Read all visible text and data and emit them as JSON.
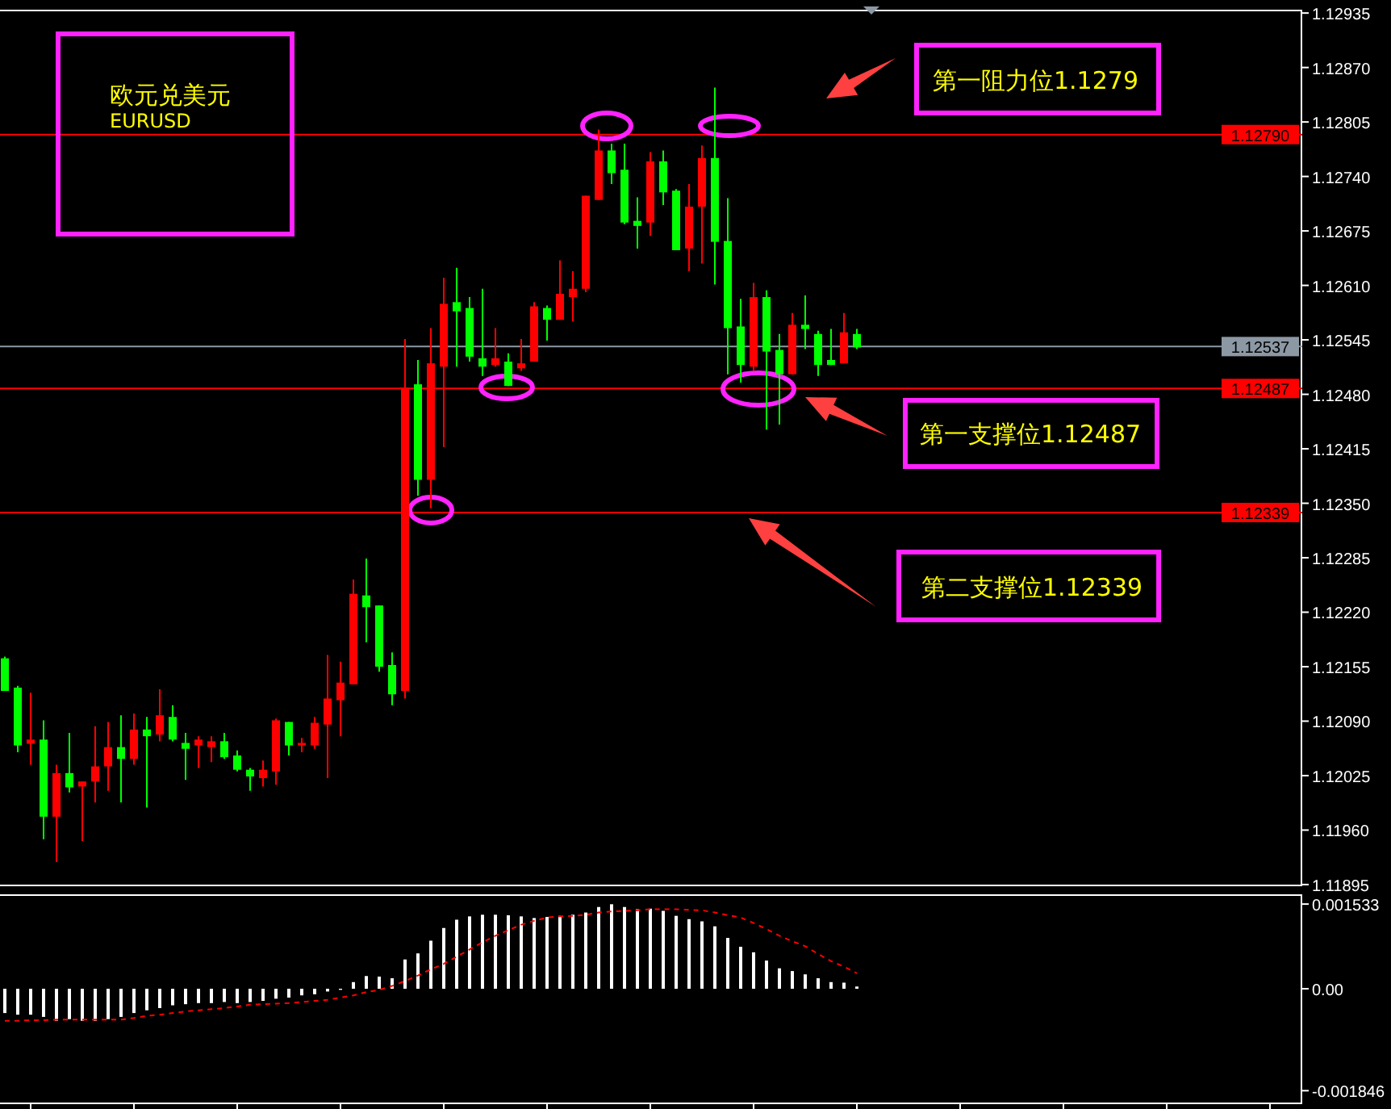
{
  "chart_data": [
    {
      "type": "candlestick",
      "tick_labels": "y",
      "grid": false,
      "categories": [
        null,
        null,
        null,
        null,
        null,
        null,
        null,
        null,
        null,
        null,
        null,
        null,
        null,
        null,
        null,
        null,
        null,
        null,
        null,
        null,
        null,
        null,
        null,
        null,
        null,
        null,
        null,
        null,
        null,
        null,
        null,
        null,
        null,
        null,
        null,
        null,
        null,
        null,
        null,
        null,
        null,
        null,
        null,
        null,
        null,
        null,
        null,
        null,
        null,
        null,
        null,
        null,
        null,
        null,
        null,
        null,
        null,
        null,
        null,
        null,
        null,
        null,
        null,
        null,
        null,
        null,
        null,
        null,
        null,
        null,
        null,
        null,
        null,
        null,
        null,
        null,
        null,
        null,
        null,
        null,
        null,
        null,
        null,
        null,
        null,
        null,
        null,
        null,
        null,
        null,
        null,
        null,
        null,
        null,
        null,
        null,
        null,
        null,
        null,
        null,
        null
      ],
      "ohlc": [
        [
          1.12165,
          1.12167,
          1.12126,
          1.12126
        ],
        [
          1.1213,
          1.12132,
          1.12053,
          1.12061
        ],
        [
          1.12063,
          1.12124,
          1.12038,
          1.12068
        ],
        [
          1.12068,
          1.12091,
          1.11949,
          1.11976
        ],
        [
          1.11976,
          1.12038,
          1.11922,
          1.12028
        ],
        [
          1.12028,
          1.12076,
          1.12005,
          1.12011
        ],
        [
          1.12012,
          1.12018,
          1.11947,
          1.12018
        ],
        [
          1.12018,
          1.12084,
          1.11993,
          1.12036
        ],
        [
          1.12036,
          1.12089,
          1.12007,
          1.12059
        ],
        [
          1.12059,
          1.12097,
          1.11993,
          1.12045
        ],
        [
          1.12045,
          1.12099,
          1.12038,
          1.1208
        ],
        [
          1.1208,
          1.12095,
          1.11987,
          1.12072
        ],
        [
          1.12074,
          1.12128,
          1.12066,
          1.12097
        ],
        [
          1.12095,
          1.12109,
          1.12066,
          1.12068
        ],
        [
          1.12064,
          1.12076,
          1.1202,
          1.12057
        ],
        [
          1.12061,
          1.12072,
          1.12034,
          1.12068
        ],
        [
          1.12059,
          1.12072,
          1.12041,
          1.12066
        ],
        [
          1.12066,
          1.12076,
          1.12045,
          1.12047
        ],
        [
          1.12049,
          1.12055,
          1.1203,
          1.12032
        ],
        [
          1.12032,
          1.12034,
          1.12007,
          1.12024
        ],
        [
          1.12022,
          1.12043,
          1.12012,
          1.12032
        ],
        [
          1.1203,
          1.12093,
          1.12014,
          1.12091
        ],
        [
          1.12089,
          1.12089,
          1.12049,
          1.12061
        ],
        [
          1.12061,
          1.1207,
          1.12053,
          1.12064
        ],
        [
          1.12061,
          1.12095,
          1.12057,
          1.12088
        ],
        [
          1.12086,
          1.12169,
          1.12022,
          1.12117
        ],
        [
          1.12115,
          1.12161,
          1.12072,
          1.12136
        ],
        [
          1.12134,
          1.12259,
          1.12134,
          1.12242
        ],
        [
          1.1224,
          1.12284,
          1.12184,
          1.12226
        ],
        [
          1.12228,
          1.12228,
          1.12149,
          1.12155
        ],
        [
          1.12157,
          1.12172,
          1.12109,
          1.12122
        ],
        [
          1.12126,
          1.12546,
          1.12117,
          1.12488
        ],
        [
          1.12492,
          1.12521,
          1.12359,
          1.12378
        ],
        [
          1.12378,
          1.12559,
          1.12344,
          1.12517
        ],
        [
          1.12513,
          1.12619,
          1.12417,
          1.12588
        ],
        [
          1.1259,
          1.12631,
          1.12513,
          1.12579
        ],
        [
          1.12583,
          1.12596,
          1.12519,
          1.12525
        ],
        [
          1.12523,
          1.12606,
          1.12502,
          1.12513
        ],
        [
          1.12515,
          1.12559,
          1.12513,
          1.12523
        ],
        [
          1.12519,
          1.12529,
          1.1249,
          1.1249
        ],
        [
          1.12511,
          1.12546,
          1.12508,
          1.12517
        ],
        [
          1.12519,
          1.1259,
          1.12519,
          1.12585
        ],
        [
          1.12583,
          1.12586,
          1.12544,
          1.12569
        ],
        [
          1.12569,
          1.1264,
          1.12569,
          1.126
        ],
        [
          1.12596,
          1.12627,
          1.12567,
          1.12606
        ],
        [
          1.12606,
          1.12717,
          1.12602,
          1.12717
        ],
        [
          1.12712,
          1.12796,
          1.12712,
          1.12771
        ],
        [
          1.12771,
          1.12779,
          1.12731,
          1.12744
        ],
        [
          1.12748,
          1.12779,
          1.12683,
          1.12685
        ],
        [
          1.12687,
          1.12715,
          1.12654,
          1.12681
        ],
        [
          1.12685,
          1.12769,
          1.12669,
          1.12758
        ],
        [
          1.12758,
          1.12771,
          1.12706,
          1.12721
        ],
        [
          1.12723,
          1.12725,
          1.12652,
          1.12652
        ],
        [
          1.12654,
          1.12731,
          1.12627,
          1.12704
        ],
        [
          1.12704,
          1.12777,
          1.12636,
          1.12762
        ],
        [
          1.12762,
          1.12846,
          1.12611,
          1.12662
        ],
        [
          1.12663,
          1.12714,
          1.12504,
          1.12559
        ],
        [
          1.12561,
          1.12594,
          1.12494,
          1.12515
        ],
        [
          1.12513,
          1.12613,
          1.12508,
          1.12596
        ],
        [
          1.12596,
          1.12604,
          1.12438,
          1.12531
        ],
        [
          1.12533,
          1.12552,
          1.12444,
          1.12504
        ],
        [
          1.12504,
          1.12577,
          1.12504,
          1.12563
        ],
        [
          1.12563,
          1.12598,
          1.12534,
          1.12558
        ],
        [
          1.12552,
          1.12556,
          1.12502,
          1.12515
        ],
        [
          1.12521,
          1.12558,
          1.12515,
          1.12515
        ],
        [
          1.12517,
          1.12577,
          1.12517,
          1.12554
        ],
        [
          1.12552,
          1.12558,
          1.12534,
          1.12536
        ],
        null,
        null,
        null,
        null,
        null,
        null,
        null,
        null,
        null,
        null,
        null,
        null,
        null,
        null,
        null,
        null,
        null,
        null,
        null,
        null,
        null,
        null,
        null,
        null,
        null,
        null,
        null,
        null,
        null,
        null,
        null,
        null,
        null,
        null
      ],
      "colors": [
        "#00ff00",
        "#00ff00",
        "#ff0000",
        "#00ff00",
        "#ff0000",
        "#00ff00",
        "#ff0000",
        "#ff0000",
        "#ff0000",
        "#00ff00",
        "#ff0000",
        "#00ff00",
        "#ff0000",
        "#00ff00",
        "#00ff00",
        "#ff0000",
        "#ff0000",
        "#00ff00",
        "#00ff00",
        "#00ff00",
        "#ff0000",
        "#ff0000",
        "#00ff00",
        "#ff0000",
        "#ff0000",
        "#ff0000",
        "#ff0000",
        "#ff0000",
        "#00ff00",
        "#00ff00",
        "#00ff00",
        "#ff0000",
        "#00ff00",
        "#ff0000",
        "#ff0000",
        "#00ff00",
        "#00ff00",
        "#00ff00",
        "#ff0000",
        "#00ff00",
        "#ff0000",
        "#ff0000",
        "#00ff00",
        "#ff0000",
        "#ff0000",
        "#ff0000",
        "#ff0000",
        "#00ff00",
        "#00ff00",
        "#00ff00",
        "#ff0000",
        "#00ff00",
        "#00ff00",
        "#ff0000",
        "#ff0000",
        "#00ff00",
        "#00ff00",
        "#00ff00",
        "#ff0000",
        "#00ff00",
        "#00ff00",
        "#ff0000",
        "#00ff00",
        "#00ff00",
        "#00ff00",
        "#ff0000",
        "#00ff00",
        null,
        null,
        null,
        null,
        null,
        null,
        null,
        null,
        null,
        null,
        null,
        null,
        null,
        null,
        null,
        null,
        null,
        null,
        null,
        null,
        null,
        null,
        null,
        null,
        null,
        null,
        null,
        null,
        null,
        null,
        null,
        null,
        null,
        null
      ],
      "ylim": [
        1.11893,
        1.12939
      ],
      "yticks": [
        {
          "value": 1.12935,
          "label": "1.12935"
        },
        {
          "value": 1.1287,
          "label": "1.12870"
        },
        {
          "value": 1.12805,
          "label": "1.12805"
        },
        {
          "value": 1.1274,
          "label": "1.12740"
        },
        {
          "value": 1.12675,
          "label": "1.12675"
        },
        {
          "value": 1.1261,
          "label": "1.12610"
        },
        {
          "value": 1.12545,
          "label": "1.12545"
        },
        {
          "value": 1.1248,
          "label": "1.12480"
        },
        {
          "value": 1.12415,
          "label": "1.12415"
        },
        {
          "value": 1.1235,
          "label": "1.12350"
        },
        {
          "value": 1.12285,
          "label": "1.12285"
        },
        {
          "value": 1.1222,
          "label": "1.12220"
        },
        {
          "value": 1.12155,
          "label": "1.12155"
        },
        {
          "value": 1.1209,
          "label": "1.12090"
        },
        {
          "value": 1.12025,
          "label": "1.12025"
        },
        {
          "value": 1.1196,
          "label": "1.11960"
        },
        {
          "value": 1.11895,
          "label": "1.11895"
        }
      ],
      "ref_lines": [
        {
          "axis": "y",
          "value": 1.1279,
          "label": "1.12790",
          "color": "#ff0000"
        },
        {
          "axis": "y",
          "value": 1.12537,
          "label": "1.12537",
          "color": "#8c98a4"
        },
        {
          "axis": "y",
          "value": 1.12487,
          "label": "1.12487",
          "color": "#ff0000"
        },
        {
          "axis": "y",
          "value": 1.12339,
          "label": "1.12339",
          "color": "#ff0000"
        }
      ],
      "annotations": [
        "欧元兑美元",
        "EURUSD",
        "第一阻力位1.1279",
        "第一支撑位1.12487",
        "第二支撑位1.12339"
      ]
    },
    {
      "type": "bar",
      "tick_labels": "y",
      "grid": false,
      "categories": [
        null,
        null,
        null,
        null,
        null,
        null,
        null,
        null,
        null,
        null,
        null,
        null,
        null,
        null,
        null,
        null,
        null,
        null,
        null,
        null,
        null,
        null,
        null,
        null,
        null,
        null,
        null,
        null,
        null,
        null,
        null,
        null,
        null,
        null,
        null,
        null,
        null,
        null,
        null,
        null,
        null,
        null,
        null,
        null,
        null,
        null,
        null,
        null,
        null,
        null,
        null,
        null,
        null,
        null,
        null,
        null,
        null,
        null,
        null,
        null,
        null,
        null,
        null,
        null,
        null,
        null,
        null,
        null,
        null,
        null,
        null,
        null,
        null,
        null,
        null,
        null,
        null,
        null,
        null,
        null,
        null,
        null,
        null,
        null,
        null,
        null,
        null,
        null,
        null,
        null,
        null,
        null,
        null,
        null,
        null,
        null,
        null,
        null,
        null,
        null,
        null
      ],
      "series": [
        {
          "type": "bar",
          "color": "#ffffff",
          "values": [
            -0.00044,
            -0.00047,
            -0.00047,
            -0.00051,
            -0.00058,
            -0.00055,
            -0.00058,
            -0.00058,
            -0.00055,
            -0.00051,
            -0.00044,
            -0.00039,
            -0.00035,
            -0.0003,
            -0.00028,
            -0.00026,
            -0.00026,
            -0.00024,
            -0.00026,
            -0.00024,
            -0.00022,
            -0.00018,
            -0.00016,
            -0.00012,
            -0.0001,
            -5e-05,
            -2e-05,
            0.00012,
            0.00023,
            0.00022,
            0.00019,
            0.00053,
            0.00064,
            0.00087,
            0.0011,
            0.00125,
            0.00131,
            0.00134,
            0.00134,
            0.00133,
            0.00131,
            0.00128,
            0.0013,
            0.00132,
            0.00134,
            0.00138,
            0.00148,
            0.00153,
            0.00148,
            0.00144,
            0.00145,
            0.00141,
            0.00132,
            0.00126,
            0.00122,
            0.00113,
            0.00092,
            0.00076,
            0.00066,
            0.00051,
            0.00037,
            0.00032,
            0.00026,
            0.00019,
            0.00012,
            0.00011,
            4e-05,
            null,
            null,
            null,
            null,
            null,
            null,
            null,
            null,
            null,
            null,
            null,
            null,
            null,
            null,
            null,
            null,
            null,
            null,
            null,
            null,
            null,
            null,
            null,
            null,
            null,
            null,
            null,
            null,
            null,
            null,
            null,
            null,
            null,
            null
          ]
        },
        {
          "type": "line",
          "color": "#ff0000",
          "line_style": "dashed",
          "values": [
            -0.00058,
            -0.00058,
            -0.00057,
            -0.00057,
            -0.00056,
            -0.00056,
            -0.00056,
            -0.00056,
            -0.00056,
            -0.00056,
            -0.00053,
            -0.00049,
            -0.00047,
            -0.00044,
            -0.00041,
            -0.00039,
            -0.00037,
            -0.00035,
            -0.00032,
            -0.00029,
            -0.00028,
            -0.00027,
            -0.00026,
            -0.00024,
            -0.00022,
            -0.0002,
            -0.00016,
            -0.00012,
            -6e-05,
            -2e-05,
            5e-05,
            0.00014,
            0.00024,
            0.00035,
            0.00045,
            0.00058,
            0.00071,
            0.00084,
            0.00096,
            0.00106,
            0.00116,
            0.00123,
            0.00129,
            0.00131,
            0.00132,
            0.00134,
            0.00138,
            0.0014,
            0.00141,
            0.00142,
            0.00144,
            0.00144,
            0.00144,
            0.00143,
            0.00142,
            0.00138,
            0.00133,
            0.00129,
            0.00119,
            0.00108,
            0.00096,
            0.00086,
            0.00077,
            0.00063,
            0.0005,
            0.0004,
            0.00028,
            null,
            null,
            null,
            null,
            null,
            null,
            null,
            null,
            null,
            null,
            null,
            null,
            null,
            null,
            null,
            null,
            null,
            null,
            null,
            null,
            null,
            null,
            null,
            null,
            null,
            null,
            null,
            null,
            null,
            null,
            null,
            null,
            null,
            null
          ]
        }
      ],
      "ylim": [
        -0.00209,
        0.00171
      ],
      "yticks": [
        {
          "value": 0.001533,
          "label": "0.001533"
        },
        {
          "value": 0,
          "label": "0.00"
        },
        {
          "value": -0.001846,
          "label": "-0.001846"
        }
      ]
    }
  ]
}
